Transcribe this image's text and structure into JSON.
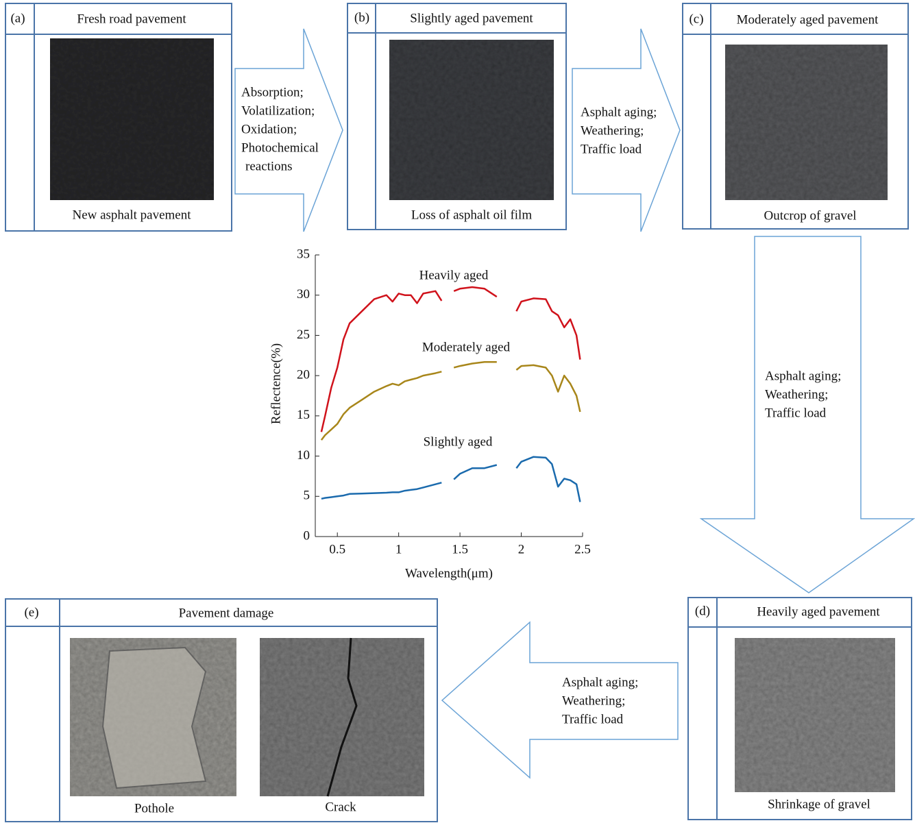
{
  "panels": [
    {
      "label": "(a)",
      "title": "Fresh road pavement",
      "caption": "New asphalt pavement"
    },
    {
      "label": "(b)",
      "title": "Slightly aged pavement",
      "caption": "Loss of asphalt oil film"
    },
    {
      "label": "(c)",
      "title": "Moderately aged pavement",
      "caption": "Outcrop of gravel"
    },
    {
      "label": "(d)",
      "title": "Heavily aged pavement",
      "caption": "Shrinkage of gravel"
    },
    {
      "label": "(e)",
      "title": "Pavement damage",
      "captions": [
        "Pothole",
        "Crack"
      ]
    }
  ],
  "arrows": [
    {
      "lines": [
        "Absorption;",
        "Volatilization;",
        "Oxidation;",
        "Photochemical",
        "reactions"
      ]
    },
    {
      "lines": [
        "Asphalt aging;",
        "Weathering;",
        "Traffic load"
      ]
    },
    {
      "lines": [
        "Asphalt aging;",
        "Weathering;",
        "Traffic load"
      ]
    },
    {
      "lines": [
        "Asphalt aging;",
        "Weathering;",
        "Traffic load"
      ]
    }
  ],
  "chart_data": {
    "type": "line",
    "x_label": "Wavelength(μm)",
    "y_label": "Reflectence(%)",
    "xlim": [
      0.32,
      2.5
    ],
    "xticks": [
      0.5,
      1,
      1.5,
      2,
      2.5
    ],
    "ylim": [
      0,
      35
    ],
    "yticks": [
      0,
      5,
      10,
      15,
      20,
      25,
      30,
      35
    ],
    "x": [
      0.37,
      0.4,
      0.45,
      0.5,
      0.55,
      0.6,
      0.7,
      0.8,
      0.9,
      0.95,
      1.0,
      1.05,
      1.1,
      1.15,
      1.2,
      1.3,
      1.35,
      1.4,
      1.45,
      1.5,
      1.6,
      1.7,
      1.8,
      1.9,
      1.96,
      2.0,
      2.1,
      2.2,
      2.25,
      2.3,
      2.35,
      2.4,
      2.45,
      2.48
    ],
    "series": [
      {
        "name": "Heavily aged",
        "color": "#d0121b",
        "values": [
          13,
          15,
          18.5,
          21,
          24.5,
          26.5,
          28,
          29.5,
          30,
          29.2,
          30.2,
          30,
          30,
          29,
          30.2,
          30.5,
          29.3,
          null,
          30.5,
          30.8,
          31,
          30.8,
          29.8,
          null,
          28,
          29.2,
          29.6,
          29.5,
          28,
          27.5,
          26,
          27,
          25,
          22
        ]
      },
      {
        "name": "Moderately aged",
        "color": "#a8861a",
        "values": [
          12,
          12.6,
          13.3,
          14,
          15.2,
          16,
          17,
          18,
          18.7,
          19,
          18.8,
          19.3,
          19.5,
          19.7,
          20,
          20.3,
          20.5,
          null,
          21,
          21.2,
          21.5,
          21.7,
          21.7,
          null,
          20.7,
          21.2,
          21.3,
          21,
          20,
          18,
          20,
          19,
          17.5,
          15.5
        ]
      },
      {
        "name": "Slightly aged",
        "color": "#1a6aad",
        "values": [
          4.7,
          4.8,
          4.9,
          5,
          5.1,
          5.3,
          5.35,
          5.4,
          5.45,
          5.5,
          5.5,
          5.7,
          5.8,
          5.9,
          6.1,
          6.5,
          6.7,
          null,
          7.1,
          7.8,
          8.5,
          8.5,
          8.9,
          null,
          8.5,
          9.3,
          9.9,
          9.8,
          9,
          6.2,
          7.2,
          7,
          6.5,
          4.3
        ]
      }
    ]
  }
}
